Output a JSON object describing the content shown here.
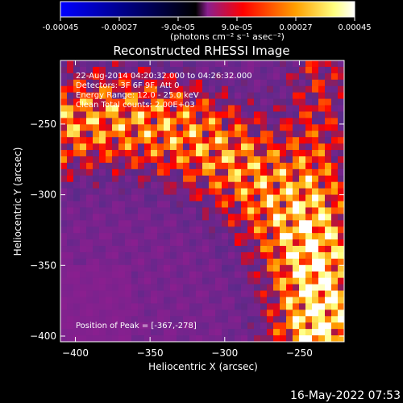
{
  "colorbar": {
    "tick_labels": [
      "-0.00045",
      "-0.00027",
      "-9.0e-05",
      "9.0e-05",
      "0.00027",
      "0.00045"
    ],
    "tick_values": [
      -0.00045,
      -0.00027,
      -9e-05,
      9e-05,
      0.00027,
      0.00045
    ],
    "range": [
      -0.00045,
      0.00045
    ],
    "unit_label": "(photons cm⁻² s⁻¹ asec⁻²)",
    "colors": [
      "#0000ff",
      "#000000",
      "#8a1f8f",
      "#ff0000",
      "#ffa000",
      "#ffff80",
      "#ffffff"
    ]
  },
  "chart_data": {
    "type": "heatmap",
    "title": "Reconstructed RHESSI Image",
    "xlabel": "Heliocentric X (arcsec)",
    "ylabel": "Heliocentric Y (arcsec)",
    "x_ticks": [
      -400,
      -350,
      -300,
      -250
    ],
    "y_ticks": [
      -250,
      -300,
      -350,
      -400
    ],
    "x_tick_labels": [
      "−400",
      "−350",
      "−300",
      "−250"
    ],
    "y_tick_labels": [
      "−250",
      "−300",
      "−350",
      "−400"
    ],
    "xlim": [
      -410,
      -220
    ],
    "ylim": [
      -404,
      -205
    ],
    "peak_position": [
      -367,
      -278
    ],
    "annotations": [
      "22-Aug-2014 04:20:32.000 to 04:26:32.000",
      "Detectors: 3F 6F 9F, Att 0",
      "Energy Range: 12.0 - 25.0 keV",
      "Clean     Total counts: 2.00E+03"
    ],
    "peak_label": "Position of Peak = [-367,-278]"
  },
  "timestamp": "16-May-2022 07:53"
}
